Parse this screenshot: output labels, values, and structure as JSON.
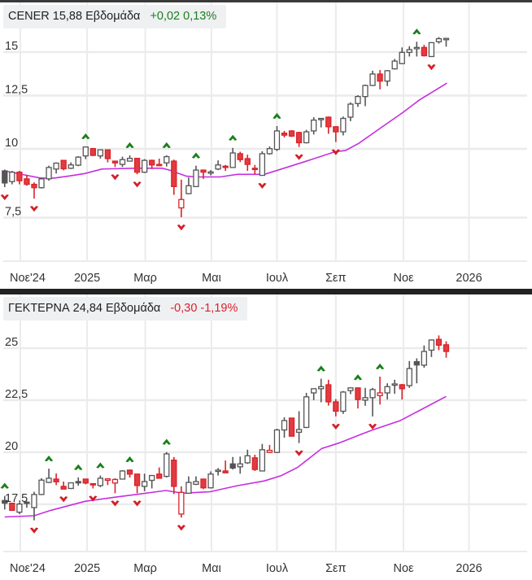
{
  "colors": {
    "up": "#555555",
    "down": "#d8232a",
    "down_fill": "#e23b40",
    "ma": "#c62ee0",
    "grid": "#ebebeb",
    "signal_up": "#1a7f1a",
    "signal_down": "#d21f26",
    "positive": "#1a7f1a",
    "negative": "#d8232a"
  },
  "chart_data": [
    {
      "type": "candlestick",
      "symbol": "CENER",
      "last": "15,88",
      "interval": "Εβδομάδα",
      "change": "+0,02",
      "change_pct": "0,13%",
      "direction": "positive",
      "yscale": "log",
      "ylim": [
        6.25,
        18.65
      ],
      "xlim": [
        -0.64,
        71
      ],
      "yticks": [
        {
          "value": 15,
          "label": "15"
        },
        {
          "value": 12.5,
          "label": "12,5"
        },
        {
          "value": 10,
          "label": "10"
        },
        {
          "value": 7.5,
          "label": "7,5"
        }
      ],
      "xticks": [
        {
          "week": 2.12,
          "label": "Noε'24"
        },
        {
          "week": 11.2,
          "label": "2025"
        },
        {
          "week": 19.1,
          "label": "Μαρ"
        },
        {
          "week": 28.1,
          "label": "Μαι"
        },
        {
          "week": 37.0,
          "label": "Ιουλ"
        },
        {
          "week": 45.0,
          "label": "Σεπ"
        },
        {
          "week": 54.2,
          "label": "Νοε"
        },
        {
          "week": 63.1,
          "label": "2026"
        }
      ],
      "ohlc_order": [
        "open",
        "high",
        "low",
        "close"
      ],
      "candles": [
        [
          9.12,
          9.17,
          8.52,
          8.67
        ],
        [
          8.72,
          9.12,
          8.62,
          9.07
        ],
        [
          9.07,
          9.12,
          8.62,
          8.75
        ],
        [
          8.82,
          8.97,
          8.57,
          8.62
        ],
        [
          8.62,
          8.69,
          8.12,
          8.5
        ],
        [
          8.5,
          8.87,
          8.47,
          8.82
        ],
        [
          8.82,
          9.32,
          8.75,
          9.25
        ],
        [
          9.19,
          9.45,
          9.02,
          9.42
        ],
        [
          9.53,
          9.55,
          9.14,
          9.2
        ],
        [
          9.22,
          9.45,
          9.19,
          9.35
        ],
        [
          9.34,
          9.7,
          9.3,
          9.66
        ],
        [
          9.71,
          10.1,
          9.58,
          10.08
        ],
        [
          10.01,
          10.04,
          9.7,
          9.73
        ],
        [
          9.71,
          9.98,
          9.6,
          9.96
        ],
        [
          9.96,
          9.98,
          9.45,
          9.6
        ],
        [
          9.5,
          9.5,
          9.27,
          9.43
        ],
        [
          9.37,
          9.68,
          9.27,
          9.56
        ],
        [
          9.5,
          9.73,
          9.5,
          9.61
        ],
        [
          9.61,
          9.63,
          8.99,
          9.07
        ],
        [
          9.07,
          9.58,
          9.04,
          9.53
        ],
        [
          9.53,
          9.56,
          9.19,
          9.35
        ],
        [
          9.37,
          9.6,
          9.34,
          9.34
        ],
        [
          9.43,
          9.73,
          9.29,
          9.68
        ],
        [
          9.5,
          9.56,
          8.25,
          8.54
        ],
        [
          7.81,
          8.79,
          7.51,
          8.09
        ],
        [
          8.29,
          8.87,
          8.27,
          8.57
        ],
        [
          8.54,
          9.32,
          8.52,
          9.15
        ],
        [
          9.15,
          9.17,
          8.82,
          9.07
        ],
        [
          9.06,
          9.15,
          8.95,
          9.08
        ],
        [
          9.19,
          9.53,
          9.15,
          9.35
        ],
        [
          9.3,
          9.35,
          9.12,
          9.25
        ],
        [
          9.25,
          10.04,
          9.24,
          9.83
        ],
        [
          9.8,
          9.88,
          9.46,
          9.56
        ],
        [
          9.6,
          9.76,
          9.12,
          9.37
        ],
        [
          9.22,
          9.35,
          8.99,
          9.19
        ],
        [
          8.95,
          9.9,
          8.94,
          9.8
        ],
        [
          9.8,
          10.1,
          9.76,
          10.01
        ],
        [
          9.98,
          11.0,
          9.91,
          10.78
        ],
        [
          10.68,
          10.78,
          10.49,
          10.59
        ],
        [
          10.78,
          10.81,
          10.51,
          10.55
        ],
        [
          10.71,
          10.74,
          10.08,
          10.26
        ],
        [
          10.26,
          10.83,
          10.23,
          10.74
        ],
        [
          10.78,
          11.42,
          10.62,
          11.28
        ],
        [
          11.31,
          11.38,
          10.94,
          11.36
        ],
        [
          11.42,
          11.45,
          10.65,
          10.97
        ],
        [
          10.97,
          11.0,
          10.29,
          10.74
        ],
        [
          10.74,
          11.45,
          10.58,
          11.36
        ],
        [
          11.42,
          12.15,
          11.23,
          12.06
        ],
        [
          12.09,
          12.52,
          11.92,
          12.45
        ],
        [
          12.45,
          13.09,
          11.96,
          13.04
        ],
        [
          13.04,
          13.87,
          13.01,
          13.68
        ],
        [
          13.68,
          13.91,
          12.83,
          13.28
        ],
        [
          13.28,
          13.91,
          13.01,
          13.87
        ],
        [
          13.98,
          14.57,
          13.94,
          14.44
        ],
        [
          14.29,
          15.29,
          14.25,
          14.98
        ],
        [
          14.98,
          15.37,
          14.72,
          15.15
        ],
        [
          15.27,
          15.66,
          14.72,
          15.29
        ],
        [
          15.29,
          15.46,
          14.72,
          14.77
        ],
        [
          14.72,
          15.63,
          14.69,
          15.6
        ],
        [
          15.66,
          15.97,
          15.54,
          15.86
        ],
        [
          15.87,
          15.92,
          15.34,
          15.88
        ]
      ],
      "moving_average": [
        [
          0,
          9.12
        ],
        [
          2.6,
          8.97
        ],
        [
          4.9,
          8.85
        ],
        [
          6.7,
          8.85
        ],
        [
          8.6,
          8.92
        ],
        [
          10.9,
          9.02
        ],
        [
          13.2,
          9.19
        ],
        [
          17.8,
          9.22
        ],
        [
          21.4,
          9.22
        ],
        [
          22.4,
          9.15
        ],
        [
          24.7,
          8.92
        ],
        [
          26.0,
          8.89
        ],
        [
          29.3,
          8.89
        ],
        [
          31.6,
          8.99
        ],
        [
          35.3,
          8.99
        ],
        [
          37.6,
          9.19
        ],
        [
          40.8,
          9.48
        ],
        [
          44.9,
          9.88
        ],
        [
          46.3,
          9.93
        ],
        [
          48.1,
          10.23
        ],
        [
          50.9,
          10.87
        ],
        [
          54.1,
          11.64
        ],
        [
          56.4,
          12.28
        ],
        [
          60.1,
          13.17
        ]
      ],
      "signals_up": [
        11,
        17,
        22,
        26,
        31,
        37,
        56
      ],
      "signals_down": [
        0,
        4,
        15,
        18,
        24,
        35,
        40,
        45,
        58
      ]
    },
    {
      "type": "candlestick",
      "symbol": "ΓΕΚΤΕΡΝΑ",
      "last": "24,84",
      "interval": "Εβδομάδα",
      "change": "-0,30",
      "change_pct": "-1,19%",
      "direction": "negative",
      "yscale": "linear",
      "ylim": [
        15.23,
        27.85
      ],
      "xlim": [
        -0.64,
        71
      ],
      "yticks": [
        {
          "value": 25,
          "label": "25"
        },
        {
          "value": 22.5,
          "label": "22,5"
        },
        {
          "value": 20,
          "label": "20"
        },
        {
          "value": 17.5,
          "label": "17,5"
        }
      ],
      "xticks": [
        {
          "week": 2.12,
          "label": "Noε'24"
        },
        {
          "week": 11.2,
          "label": "2025"
        },
        {
          "week": 19.1,
          "label": "Μαρ"
        },
        {
          "week": 28.1,
          "label": "Μαι"
        },
        {
          "week": 37.0,
          "label": "Ιουλ"
        },
        {
          "week": 45.0,
          "label": "Σεπ"
        },
        {
          "week": 54.2,
          "label": "Νοε"
        },
        {
          "week": 63.1,
          "label": "2026"
        }
      ],
      "ohlc_order": [
        "open",
        "high",
        "low",
        "close"
      ],
      "candles": [
        [
          17.68,
          17.9,
          17.25,
          17.55
        ],
        [
          17.55,
          17.55,
          17.21,
          17.21
        ],
        [
          17.12,
          17.58,
          17.03,
          17.51
        ],
        [
          17.6,
          17.64,
          17.34,
          17.55
        ],
        [
          17.34,
          18.1,
          16.73,
          17.97
        ],
        [
          17.97,
          18.75,
          17.94,
          18.66
        ],
        [
          18.55,
          19.21,
          18.52,
          18.75
        ],
        [
          18.71,
          18.98,
          18.42,
          18.58
        ],
        [
          18.36,
          18.59,
          18.23,
          18.23
        ],
        [
          18.26,
          18.55,
          18.23,
          18.53
        ],
        [
          18.59,
          18.79,
          18.39,
          18.54
        ],
        [
          18.71,
          18.71,
          18.46,
          18.52
        ],
        [
          18.49,
          18.49,
          18.26,
          18.44
        ],
        [
          18.4,
          18.88,
          18.32,
          18.75
        ],
        [
          18.65,
          18.75,
          18.42,
          18.72
        ],
        [
          18.52,
          18.75,
          18.03,
          18.69
        ],
        [
          18.71,
          19.14,
          18.69,
          19.1
        ],
        [
          19.14,
          19.17,
          18.78,
          18.95
        ],
        [
          18.95,
          18.95,
          18.03,
          18.4
        ],
        [
          18.36,
          18.97,
          18.13,
          18.59
        ],
        [
          18.65,
          18.91,
          18.26,
          18.88
        ],
        [
          18.95,
          19.27,
          18.75,
          18.75
        ],
        [
          18.84,
          20.01,
          18.79,
          19.92
        ],
        [
          19.62,
          19.77,
          17.99,
          18.36
        ],
        [
          17.03,
          18.36,
          16.86,
          18.07
        ],
        [
          18.03,
          18.84,
          18.01,
          18.55
        ],
        [
          18.46,
          18.84,
          18.42,
          18.59
        ],
        [
          18.71,
          18.71,
          18.23,
          18.29
        ],
        [
          18.29,
          19.08,
          18.26,
          18.95
        ],
        [
          19.11,
          19.24,
          18.88,
          19.14
        ],
        [
          19.1,
          19.6,
          19.01,
          19.01
        ],
        [
          19.44,
          19.77,
          19.17,
          19.24
        ],
        [
          19.3,
          19.79,
          18.97,
          19.44
        ],
        [
          19.49,
          20.12,
          19.44,
          19.83
        ],
        [
          19.73,
          19.88,
          19.1,
          19.17
        ],
        [
          19.1,
          20.4,
          19.1,
          20.12
        ],
        [
          19.99,
          20.35,
          19.96,
          20.09
        ],
        [
          19.99,
          21.13,
          19.96,
          21.07
        ],
        [
          21.07,
          21.68,
          20.7,
          21.52
        ],
        [
          21.64,
          21.64,
          20.77,
          20.77
        ],
        [
          20.96,
          21.97,
          20.44,
          21.09
        ],
        [
          21.19,
          22.85,
          21.16,
          22.66
        ],
        [
          22.85,
          23.07,
          22.5,
          23.05
        ],
        [
          23.05,
          23.53,
          22.4,
          23.15
        ],
        [
          23.24,
          23.48,
          22.24,
          22.42
        ],
        [
          22.42,
          22.55,
          21.72,
          21.97
        ],
        [
          21.97,
          22.94,
          21.84,
          22.89
        ],
        [
          22.96,
          23.11,
          22.79,
          23.09
        ],
        [
          23.09,
          23.11,
          22.1,
          22.53
        ],
        [
          22.5,
          23.09,
          22.23,
          22.62
        ],
        [
          22.62,
          23.09,
          21.72,
          23.01
        ],
        [
          22.72,
          23.63,
          22.29,
          22.85
        ],
        [
          22.85,
          23.31,
          22.53,
          23.15
        ],
        [
          23.22,
          23.48,
          22.81,
          23.28
        ],
        [
          23.24,
          23.28,
          22.53,
          23.05
        ],
        [
          23.2,
          24.38,
          23.09,
          24.02
        ],
        [
          24.35,
          24.51,
          23.31,
          24.19
        ],
        [
          24.18,
          25.13,
          24.06,
          24.84
        ],
        [
          24.9,
          25.42,
          24.57,
          25.39
        ],
        [
          25.42,
          25.61,
          24.9,
          25.14
        ],
        [
          25.16,
          25.33,
          24.54,
          24.84
        ]
      ],
      "moving_average": [
        [
          0,
          16.89
        ],
        [
          4.0,
          16.95
        ],
        [
          6.3,
          17.21
        ],
        [
          10.9,
          17.64
        ],
        [
          15.0,
          17.84
        ],
        [
          17.8,
          17.97
        ],
        [
          21.9,
          18.16
        ],
        [
          24.2,
          18.03
        ],
        [
          27.9,
          18.1
        ],
        [
          31.6,
          18.39
        ],
        [
          35.3,
          18.62
        ],
        [
          37.6,
          18.88
        ],
        [
          39.8,
          19.27
        ],
        [
          43.1,
          20.18
        ],
        [
          45.4,
          20.44
        ],
        [
          48.2,
          20.83
        ],
        [
          50.0,
          21.07
        ],
        [
          53.7,
          21.51
        ],
        [
          56.4,
          22.01
        ],
        [
          60.0,
          22.68
        ]
      ],
      "signals_up": [
        0,
        6,
        10,
        13,
        17,
        22,
        43,
        48,
        51
      ],
      "signals_down": [
        4,
        8,
        12,
        15,
        18,
        24,
        40,
        45,
        50
      ]
    }
  ]
}
